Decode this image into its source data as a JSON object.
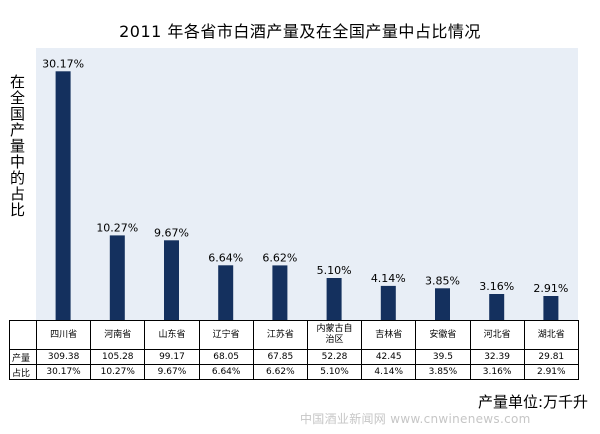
{
  "chart_data": {
    "type": "bar",
    "title": "2011 年各省市白酒产量及在全国产量中占比情况",
    "ylabel": "在全国产量中的占比",
    "ylim": [
      0,
      33
    ],
    "categories": [
      "四川省",
      "河南省",
      "山东省",
      "辽宁省",
      "江苏省",
      "内蒙古自治区",
      "吉林省",
      "安徽省",
      "河北省",
      "湖北省"
    ],
    "category_lines": [
      [
        "四川省"
      ],
      [
        "河南省"
      ],
      [
        "山东省"
      ],
      [
        "辽宁省"
      ],
      [
        "江苏省"
      ],
      [
        "内蒙古自",
        "治区"
      ],
      [
        "吉林省"
      ],
      [
        "安徽省"
      ],
      [
        "河北省"
      ],
      [
        "湖北省"
      ]
    ],
    "values": [
      30.17,
      10.27,
      9.67,
      6.64,
      6.62,
      5.1,
      4.14,
      3.85,
      3.16,
      2.91
    ],
    "data_labels": [
      "30.17%",
      "10.27%",
      "9.67%",
      "6.64%",
      "6.62%",
      "5.10%",
      "4.14%",
      "3.85%",
      "3.16%",
      "2.91%"
    ],
    "bar_color": "#14305e",
    "plot_background": "#e8eef6",
    "grid": false,
    "table": {
      "rows": [
        {
          "label": "产量",
          "values": [
            "309.38",
            "105.28",
            "99.17",
            "68.05",
            "67.85",
            "52.28",
            "42.45",
            "39.5",
            "32.39",
            "29.81"
          ]
        },
        {
          "label": "占比",
          "values": [
            "30.17%",
            "10.27%",
            "9.67%",
            "6.64%",
            "6.62%",
            "5.10%",
            "4.14%",
            "3.85%",
            "3.16%",
            "2.91%"
          ]
        }
      ]
    },
    "unit_label": "产量单位:万千升"
  },
  "watermark": "中国酒业新闻网 www.cnwinenews.com"
}
